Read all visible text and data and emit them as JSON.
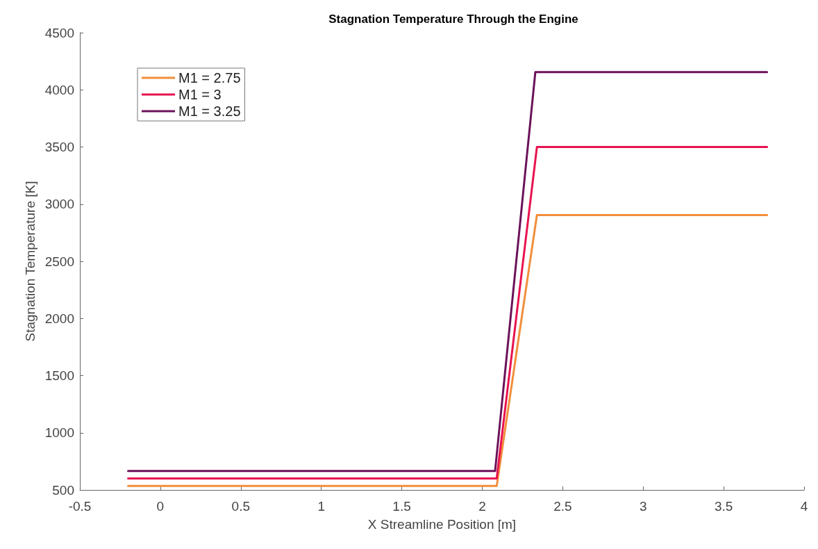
{
  "chart_data": {
    "type": "line",
    "title": "Stagnation Temperature Through the Engine",
    "xlabel": "X Streamline Position [m]",
    "ylabel": "Stagnation Temperature [K]",
    "x": [
      -0.2,
      2.09,
      2.34,
      3.77
    ],
    "series": [
      {
        "name": "M1 = 2.75",
        "color": "#f28e3c",
        "values": [
          535,
          535,
          2905,
          2905
        ]
      },
      {
        "name": "M1 = 3",
        "color": "#e8124f",
        "values": [
          600,
          600,
          3500,
          3500
        ]
      },
      {
        "name": "M1 = 3.25",
        "color": "#6b1259",
        "x": [
          -0.2,
          2.08,
          2.33,
          3.77
        ],
        "values": [
          665,
          665,
          4155,
          4155
        ]
      }
    ],
    "xlim": [
      -0.5,
      4
    ],
    "xticks": [
      -0.5,
      0,
      0.5,
      1,
      1.5,
      2,
      2.5,
      3,
      3.5,
      4
    ],
    "ylim": [
      500,
      4500
    ],
    "yticks": [
      500,
      1000,
      1500,
      2000,
      2500,
      3000,
      3500,
      4000,
      4500
    ],
    "grid": false,
    "legend": "top left",
    "marker": "none",
    "line_style": "solid"
  }
}
